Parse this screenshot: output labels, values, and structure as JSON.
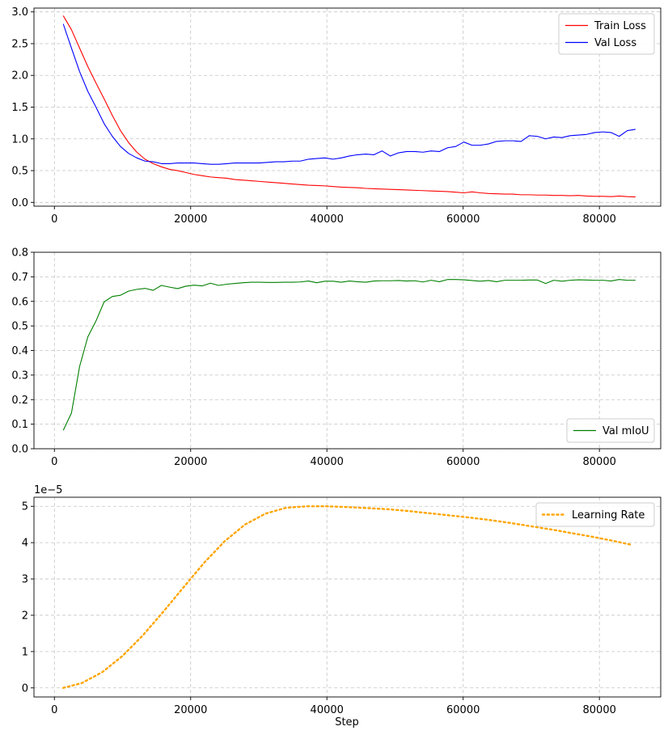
{
  "chart_data": [
    {
      "type": "line",
      "title": "",
      "xlabel": "",
      "ylabel": "",
      "xlim": [
        -3000,
        89000
      ],
      "ylim": [
        -0.06,
        3.06
      ],
      "xticks": [
        0,
        20000,
        40000,
        60000,
        80000
      ],
      "yticks": [
        0.0,
        0.5,
        1.0,
        1.5,
        2.0,
        2.5,
        3.0
      ],
      "ytick_labels": [
        "0.0",
        "0.5",
        "1.0",
        "1.5",
        "2.0",
        "2.5",
        "3.0"
      ],
      "xtick_labels": [
        "0",
        "20000",
        "40000",
        "60000",
        "80000"
      ],
      "grid": true,
      "legend": "top-right",
      "series": [
        {
          "name": "Train Loss",
          "color": "#ff0000",
          "style": "solid",
          "x": [
            1300,
            2500,
            3700,
            4900,
            6100,
            7300,
            8500,
            9700,
            10900,
            12100,
            13300,
            14500,
            15700,
            16900,
            18100,
            19300,
            20500,
            21700,
            22900,
            24100,
            25300,
            26500,
            27700,
            28900,
            30100,
            31300,
            32500,
            33700,
            34900,
            36100,
            37300,
            38500,
            39700,
            40900,
            42100,
            43300,
            44500,
            45700,
            46900,
            48100,
            49300,
            50500,
            51700,
            52900,
            54100,
            55300,
            56500,
            57700,
            58900,
            60100,
            61300,
            62500,
            63700,
            64900,
            66100,
            67300,
            68500,
            69700,
            70900,
            72100,
            73300,
            74500,
            75700,
            76900,
            78100,
            79300,
            80500,
            81700,
            82900,
            84100,
            85300
          ],
          "y": [
            2.94,
            2.72,
            2.43,
            2.14,
            1.88,
            1.63,
            1.37,
            1.13,
            0.94,
            0.79,
            0.68,
            0.61,
            0.56,
            0.52,
            0.5,
            0.47,
            0.44,
            0.42,
            0.4,
            0.39,
            0.38,
            0.36,
            0.35,
            0.34,
            0.33,
            0.32,
            0.31,
            0.3,
            0.29,
            0.28,
            0.27,
            0.265,
            0.26,
            0.25,
            0.24,
            0.235,
            0.23,
            0.22,
            0.215,
            0.21,
            0.205,
            0.2,
            0.195,
            0.19,
            0.185,
            0.18,
            0.175,
            0.17,
            0.16,
            0.15,
            0.165,
            0.15,
            0.14,
            0.135,
            0.13,
            0.13,
            0.12,
            0.12,
            0.115,
            0.115,
            0.11,
            0.11,
            0.105,
            0.11,
            0.1,
            0.095,
            0.095,
            0.09,
            0.1,
            0.09,
            0.085
          ]
        },
        {
          "name": "Val Loss",
          "color": "#0000ff",
          "style": "solid",
          "x": [
            1300,
            2500,
            3700,
            4900,
            6100,
            7300,
            8500,
            9700,
            10900,
            12100,
            13300,
            14500,
            15700,
            16900,
            18100,
            19300,
            20500,
            21700,
            22900,
            24100,
            25300,
            26500,
            27700,
            28900,
            30100,
            31300,
            32500,
            33700,
            34900,
            36100,
            37300,
            38500,
            39700,
            40900,
            42100,
            43300,
            44500,
            45700,
            46900,
            48100,
            49300,
            50500,
            51700,
            52900,
            54100,
            55300,
            56500,
            57700,
            58900,
            60100,
            61300,
            62500,
            63700,
            64900,
            66100,
            67300,
            68500,
            69700,
            70900,
            72100,
            73300,
            74500,
            75700,
            76900,
            78100,
            79300,
            80500,
            81700,
            82900,
            84100,
            85300
          ],
          "y": [
            2.81,
            2.43,
            2.06,
            1.75,
            1.5,
            1.24,
            1.04,
            0.88,
            0.77,
            0.7,
            0.65,
            0.64,
            0.61,
            0.61,
            0.62,
            0.62,
            0.62,
            0.61,
            0.6,
            0.6,
            0.61,
            0.62,
            0.62,
            0.62,
            0.62,
            0.63,
            0.64,
            0.64,
            0.65,
            0.65,
            0.68,
            0.69,
            0.7,
            0.68,
            0.7,
            0.73,
            0.75,
            0.76,
            0.75,
            0.81,
            0.73,
            0.78,
            0.8,
            0.8,
            0.79,
            0.81,
            0.8,
            0.86,
            0.88,
            0.95,
            0.9,
            0.9,
            0.92,
            0.96,
            0.97,
            0.97,
            0.96,
            1.05,
            1.04,
            1.0,
            1.03,
            1.02,
            1.05,
            1.06,
            1.07,
            1.1,
            1.11,
            1.1,
            1.04,
            1.13,
            1.15
          ]
        }
      ]
    },
    {
      "type": "line",
      "title": "",
      "xlabel": "",
      "ylabel": "",
      "xlim": [
        -3000,
        89000
      ],
      "ylim": [
        0.0,
        0.8
      ],
      "xticks": [
        0,
        20000,
        40000,
        60000,
        80000
      ],
      "yticks": [
        0.0,
        0.1,
        0.2,
        0.3,
        0.4,
        0.5,
        0.6,
        0.7,
        0.8
      ],
      "ytick_labels": [
        "0.0",
        "0.1",
        "0.2",
        "0.3",
        "0.4",
        "0.5",
        "0.6",
        "0.7",
        "0.8"
      ],
      "xtick_labels": [
        "0",
        "20000",
        "40000",
        "60000",
        "80000"
      ],
      "grid": true,
      "legend": "bottom-right",
      "series": [
        {
          "name": "Val mIoU",
          "color": "#008000",
          "style": "solid",
          "x": [
            1300,
            2500,
            3700,
            4900,
            6100,
            7300,
            8500,
            9700,
            10900,
            12100,
            13300,
            14500,
            15700,
            16900,
            18100,
            19300,
            20500,
            21700,
            22900,
            24100,
            25300,
            26500,
            27700,
            28900,
            30100,
            31300,
            32500,
            33700,
            34900,
            36100,
            37300,
            38500,
            39700,
            40900,
            42100,
            43300,
            44500,
            45700,
            46900,
            48100,
            49300,
            50500,
            51700,
            52900,
            54100,
            55300,
            56500,
            57700,
            58900,
            60100,
            61300,
            62500,
            63700,
            64900,
            66100,
            67300,
            68500,
            69700,
            70900,
            72100,
            73300,
            74500,
            75700,
            76900,
            78100,
            79300,
            80500,
            81700,
            82900,
            84100,
            85300
          ],
          "y": [
            0.075,
            0.145,
            0.335,
            0.455,
            0.52,
            0.598,
            0.62,
            0.625,
            0.642,
            0.649,
            0.653,
            0.645,
            0.665,
            0.658,
            0.652,
            0.662,
            0.666,
            0.663,
            0.674,
            0.665,
            0.67,
            0.673,
            0.676,
            0.678,
            0.678,
            0.677,
            0.677,
            0.678,
            0.678,
            0.679,
            0.683,
            0.676,
            0.682,
            0.682,
            0.678,
            0.683,
            0.68,
            0.678,
            0.683,
            0.684,
            0.684,
            0.685,
            0.683,
            0.684,
            0.679,
            0.686,
            0.68,
            0.689,
            0.689,
            0.688,
            0.685,
            0.682,
            0.685,
            0.68,
            0.686,
            0.686,
            0.686,
            0.687,
            0.687,
            0.673,
            0.686,
            0.682,
            0.686,
            0.688,
            0.687,
            0.686,
            0.686,
            0.683,
            0.689,
            0.686,
            0.686
          ]
        }
      ]
    },
    {
      "type": "line",
      "title": "",
      "xlabel": "Step",
      "ylabel": "",
      "y_scale_label": "1e−5",
      "xlim": [
        -3000,
        89000
      ],
      "ylim": [
        -0.25,
        5.25
      ],
      "xticks": [
        0,
        20000,
        40000,
        60000,
        80000
      ],
      "yticks": [
        0,
        1,
        2,
        3,
        4,
        5
      ],
      "ytick_labels": [
        "0",
        "1",
        "2",
        "3",
        "4",
        "5"
      ],
      "xtick_labels": [
        "0",
        "20000",
        "40000",
        "60000",
        "80000"
      ],
      "grid": true,
      "legend": "top-right",
      "series": [
        {
          "name": "Learning Rate",
          "color": "#ffa500",
          "style": "dotted",
          "x": [
            1300,
            4000,
            7000,
            10000,
            13000,
            16000,
            19000,
            22000,
            25000,
            28000,
            31000,
            34000,
            37000,
            40000,
            43000,
            46000,
            49000,
            52000,
            55000,
            58000,
            61000,
            64000,
            67000,
            70000,
            73000,
            76000,
            79000,
            82000,
            84700
          ],
          "y": [
            0.0,
            0.13,
            0.43,
            0.88,
            1.45,
            2.1,
            2.78,
            3.45,
            4.04,
            4.5,
            4.8,
            4.96,
            5.0,
            5.0,
            4.98,
            4.95,
            4.92,
            4.87,
            4.81,
            4.75,
            4.69,
            4.62,
            4.54,
            4.45,
            4.36,
            4.26,
            4.16,
            4.05,
            3.94
          ]
        }
      ]
    }
  ]
}
